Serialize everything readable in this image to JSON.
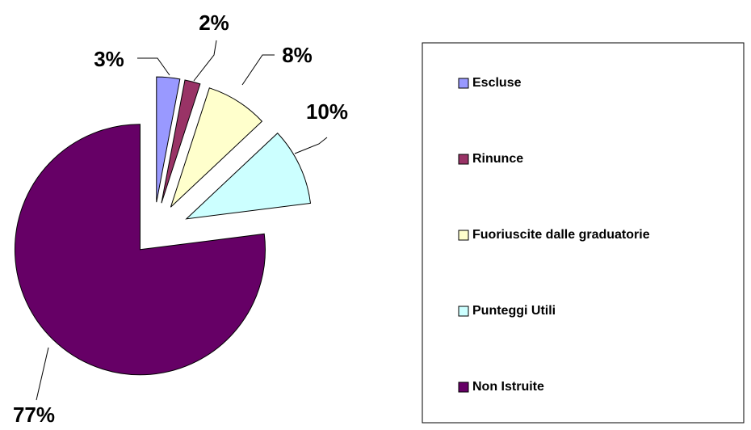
{
  "chart_data": {
    "type": "pie",
    "categories": [
      "Escluse",
      "Rinunce",
      "Fuoriuscite dalle graduatorie",
      "Punteggi Utili",
      "Non Istruite"
    ],
    "values": [
      3,
      2,
      8,
      10,
      77
    ],
    "value_labels": [
      "3%",
      "2%",
      "8%",
      "10%",
      "77%"
    ],
    "colors": [
      "#9999ff",
      "#993366",
      "#ffffcc",
      "#ccffff",
      "#660066"
    ],
    "legend": "right"
  }
}
